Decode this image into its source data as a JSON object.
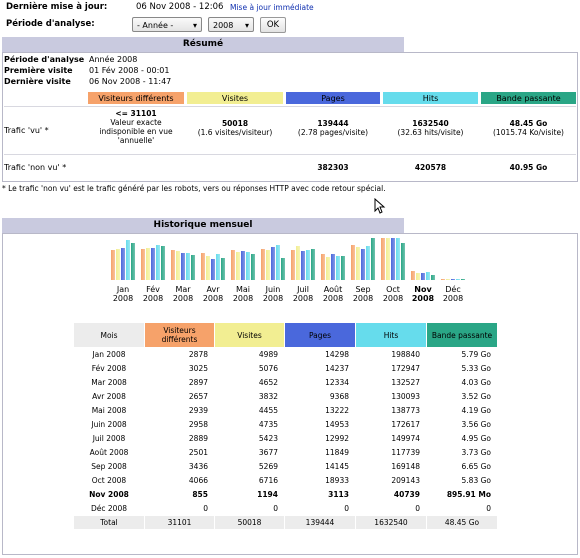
{
  "colors": {
    "visitors": "#f6a26a",
    "visits": "#f2ee92",
    "pages": "#4a68dc",
    "hits": "#66dcec",
    "bandwidth": "#2aa686",
    "section_bg": "#c9cadf"
  },
  "top": {
    "last_update_label": "Dernière mise à jour:",
    "last_update_value": "06 Nov 2008 - 12:06",
    "update_now_link": "Mise à jour immédiate",
    "period_label": "Période d'analyse:",
    "month_select": "- Année -",
    "year_select": "2008",
    "ok_button": "OK"
  },
  "summary": {
    "title": "Résumé",
    "period_label": "Période d'analyse",
    "period_value": "Année 2008",
    "first_visit_label": "Première visite",
    "first_visit_value": "01 Fév 2008 - 00:01",
    "last_visit_label": "Dernière visite",
    "last_visit_value": "06 Nov 2008 - 11:47",
    "headers": [
      "Visiteurs différents",
      "Visites",
      "Pages",
      "Hits",
      "Bande passante"
    ],
    "viewed_label": "Trafic 'vu' *",
    "viewed": {
      "visitors": "<= 31101",
      "visitors_note": "Valeur exacte indisponible en vue 'annuelle'",
      "visits": "50018",
      "visits_sub": "(1.6 visites/visiteur)",
      "pages": "139444",
      "pages_sub": "(2.78 pages/visite)",
      "hits": "1632540",
      "hits_sub": "(32.63 hits/visite)",
      "bandwidth": "48.45 Go",
      "bandwidth_sub": "(1015.74 Ko/visite)"
    },
    "notviewed_label": "Trafic 'non vu' *",
    "notviewed": {
      "pages": "382303",
      "hits": "420578",
      "bandwidth": "40.95 Go"
    },
    "footnote": "* Le trafic 'non vu' est le trafic généré par les robots, vers ou réponses HTTP avec code retour spécial."
  },
  "history": {
    "title": "Historique mensuel",
    "headers": [
      "Mois",
      "Visiteurs différents",
      "Visites",
      "Pages",
      "Hits",
      "Bande passante"
    ],
    "rows": [
      [
        "Jan 2008",
        "2878",
        "4989",
        "14298",
        "198840",
        "5.79 Go"
      ],
      [
        "Fév 2008",
        "3025",
        "5076",
        "14237",
        "172947",
        "5.33 Go"
      ],
      [
        "Mar 2008",
        "2897",
        "4652",
        "12334",
        "132527",
        "4.03 Go"
      ],
      [
        "Avr 2008",
        "2657",
        "3832",
        "9368",
        "130093",
        "3.52 Go"
      ],
      [
        "Mai 2008",
        "2939",
        "4455",
        "13222",
        "138773",
        "4.19 Go"
      ],
      [
        "Juin 2008",
        "2958",
        "4735",
        "14953",
        "172617",
        "3.56 Go"
      ],
      [
        "Juil 2008",
        "2889",
        "5423",
        "12992",
        "149974",
        "4.95 Go"
      ],
      [
        "Août 2008",
        "2501",
        "3677",
        "11849",
        "117739",
        "3.73 Go"
      ],
      [
        "Sep 2008",
        "3436",
        "5269",
        "14145",
        "169148",
        "6.65 Go"
      ],
      [
        "Oct 2008",
        "4066",
        "6716",
        "18933",
        "209143",
        "5.83 Go"
      ],
      [
        "Nov 2008",
        "855",
        "1194",
        "3113",
        "40739",
        "895.91 Mo"
      ],
      [
        "Déc 2008",
        "0",
        "0",
        "0",
        "0",
        "0"
      ]
    ],
    "total": [
      "Total",
      "31101",
      "50018",
      "139444",
      "1632540",
      "48.45 Go"
    ],
    "chart_months": [
      {
        "m": "Jan",
        "y": "2008"
      },
      {
        "m": "Fév",
        "y": "2008"
      },
      {
        "m": "Mar",
        "y": "2008"
      },
      {
        "m": "Avr",
        "y": "2008"
      },
      {
        "m": "Mai",
        "y": "2008"
      },
      {
        "m": "Juin",
        "y": "2008"
      },
      {
        "m": "Juil",
        "y": "2008"
      },
      {
        "m": "Août",
        "y": "2008"
      },
      {
        "m": "Sep",
        "y": "2008"
      },
      {
        "m": "Oct",
        "y": "2008"
      },
      {
        "m": "Nov",
        "y": "2008"
      },
      {
        "m": "Déc",
        "y": "2008"
      }
    ],
    "current_month_index": 10
  },
  "chart_data": {
    "type": "bar",
    "categories": [
      "Jan 2008",
      "Fév 2008",
      "Mar 2008",
      "Avr 2008",
      "Mai 2008",
      "Juin 2008",
      "Juil 2008",
      "Août 2008",
      "Sep 2008",
      "Oct 2008",
      "Nov 2008",
      "Déc 2008"
    ],
    "series": [
      {
        "values": [
          2878,
          3025,
          2897,
          2657,
          2939,
          2958,
          2889,
          2501,
          3436,
          4066,
          855,
          0
        ]
      },
      {
        "values": [
          4989,
          5076,
          4652,
          3832,
          4455,
          4735,
          5423,
          3677,
          5269,
          6716,
          1194,
          0
        ]
      },
      {
        "values": [
          14298,
          14237,
          12334,
          9368,
          13222,
          14953,
          12992,
          11849,
          14145,
          18933,
          3113,
          0
        ]
      },
      {
        "values": [
          198840,
          172947,
          132527,
          130093,
          138773,
          172617,
          149974,
          117739,
          169148,
          209143,
          40739,
          0
        ]
      },
      {
        "values": [
          5.79,
          5.33,
          4.03,
          3.52,
          4.19,
          3.56,
          4.95,
          3.73,
          6.65,
          5.83,
          0.87,
          0
        ]
      }
    ]
  }
}
